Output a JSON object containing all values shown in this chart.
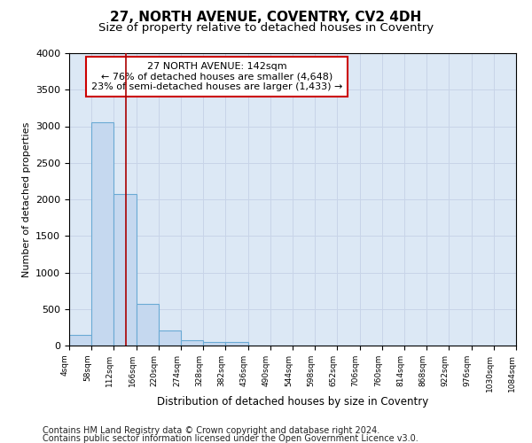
{
  "title": "27, NORTH AVENUE, COVENTRY, CV2 4DH",
  "subtitle": "Size of property relative to detached houses in Coventry",
  "xlabel": "Distribution of detached houses by size in Coventry",
  "ylabel": "Number of detached properties",
  "property_size": 142,
  "annotation_line1": "27 NORTH AVENUE: 142sqm",
  "annotation_line2": "← 76% of detached houses are smaller (4,648)",
  "annotation_line3": "23% of semi-detached houses are larger (1,433) →",
  "footer_line1": "Contains HM Land Registry data © Crown copyright and database right 2024.",
  "footer_line2": "Contains public sector information licensed under the Open Government Licence v3.0.",
  "bins": [
    4,
    58,
    112,
    166,
    220,
    274,
    328,
    382,
    436,
    490,
    544,
    598,
    652,
    706,
    760,
    814,
    868,
    922,
    976,
    1030,
    1084
  ],
  "bar_heights": [
    150,
    3060,
    2070,
    565,
    210,
    75,
    50,
    50,
    0,
    0,
    0,
    0,
    0,
    0,
    0,
    0,
    0,
    0,
    0,
    0
  ],
  "bar_color": "#c5d8ef",
  "bar_edge_color": "#6aaad4",
  "grid_color": "#c8d4e8",
  "line_color": "#aa0000",
  "annotation_box_edge_color": "#cc0000",
  "ylim": [
    0,
    4000
  ],
  "yticks": [
    0,
    500,
    1000,
    1500,
    2000,
    2500,
    3000,
    3500,
    4000
  ],
  "background_color": "#dce8f5",
  "title_fontsize": 11,
  "subtitle_fontsize": 9.5,
  "annotation_fontsize": 8,
  "footer_fontsize": 7
}
